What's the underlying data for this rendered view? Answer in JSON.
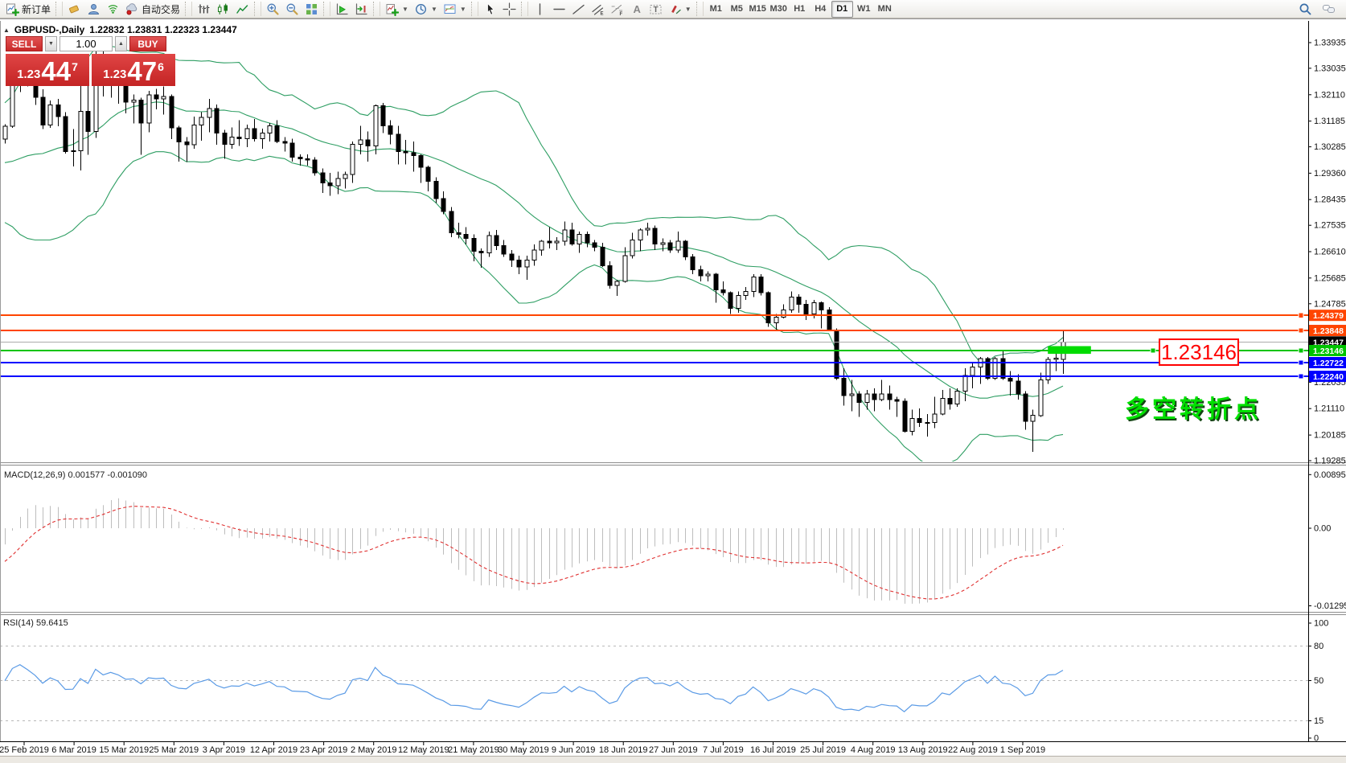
{
  "toolbar": {
    "items": [
      {
        "icon": "new-order",
        "label": "新订单",
        "name": "new-order-button"
      },
      {
        "sep": true
      },
      {
        "icon": "eraser",
        "name": "eraser-button"
      },
      {
        "icon": "profile",
        "name": "profile-button"
      },
      {
        "icon": "signal",
        "name": "signals-button"
      },
      {
        "icon": "auto-trading",
        "label": "自动交易",
        "name": "auto-trading-button"
      },
      {
        "sep": true
      },
      {
        "icon": "bar-chart",
        "name": "bar-chart-button"
      },
      {
        "icon": "candle-chart",
        "name": "candle-chart-button"
      },
      {
        "icon": "line-chart",
        "name": "line-chart-button"
      },
      {
        "sep": true
      },
      {
        "icon": "zoom-in",
        "name": "zoom-in-button"
      },
      {
        "icon": "zoom-out",
        "name": "zoom-out-button"
      },
      {
        "icon": "tile-windows",
        "name": "tile-windows-button"
      },
      {
        "sep": true
      },
      {
        "icon": "auto-scroll",
        "name": "auto-scroll-button"
      },
      {
        "icon": "chart-shift",
        "name": "chart-shift-button"
      },
      {
        "sep": true
      },
      {
        "icon": "indicators-add",
        "caret": true,
        "name": "indicators-button"
      },
      {
        "icon": "periods-clock",
        "caret": true,
        "name": "periods-button"
      },
      {
        "icon": "templates",
        "caret": true,
        "name": "templates-button"
      },
      {
        "sep": true
      },
      {
        "icon": "cursor",
        "name": "cursor-button"
      },
      {
        "icon": "crosshair",
        "name": "crosshair-button"
      },
      {
        "sep": true
      },
      {
        "icon": "vertical-line",
        "name": "vertical-line-button"
      },
      {
        "icon": "horizontal-line",
        "name": "horizontal-line-button"
      },
      {
        "icon": "trend-line",
        "name": "trend-line-button"
      },
      {
        "icon": "equidistant-channel",
        "name": "equidistant-channel-button"
      },
      {
        "icon": "fibonacci",
        "name": "fibonacci-button"
      },
      {
        "icon": "text",
        "name": "text-button"
      },
      {
        "icon": "text-label",
        "name": "text-label-button"
      },
      {
        "icon": "arrows",
        "caret": true,
        "name": "arrows-button"
      },
      {
        "sep": true
      }
    ],
    "timeframes": [
      "M1",
      "M5",
      "M15",
      "M30",
      "H1",
      "H4",
      "D1",
      "W1",
      "MN"
    ],
    "active_timeframe": "D1"
  },
  "header": {
    "collapse_glyph": "▲",
    "symbol_title": "GBPUSD-,Daily",
    "ohlc": "1.22832 1.23831 1.22323 1.23447"
  },
  "trade_panel": {
    "sell_label": "SELL",
    "buy_label": "BUY",
    "volume": "1.00",
    "down_glyph": "▼",
    "up_glyph": "▲",
    "sell_small": "1.23",
    "sell_big": "44",
    "sell_sup": "7",
    "buy_small": "1.23",
    "buy_big": "47",
    "buy_sup": "6"
  },
  "indicators": {
    "macd_label": "MACD(12,26,9) 0.001577 -0.001090",
    "rsi_label": "RSI(14) 59.6415"
  },
  "annotations": {
    "price_callout": "1.23146",
    "turning_point": "多空转折点"
  },
  "chart_data": {
    "type": "candlestick",
    "symbol": "GBPUSD",
    "timeframe": "Daily",
    "price_ticks": [
      "1.33935",
      "1.33035",
      "1.32110",
      "1.31185",
      "1.30285",
      "1.29360",
      "1.28435",
      "1.27535",
      "1.26610",
      "1.25685",
      "1.24785",
      "1.22035",
      "1.21110",
      "1.20185",
      "1.19285"
    ],
    "axis_labels": [
      {
        "text": "1.24379",
        "bg": "#FF4500"
      },
      {
        "text": "1.23848",
        "bg": "#FF4500"
      },
      {
        "text": "1.23447",
        "bg": "#000000"
      },
      {
        "text": "1.23146",
        "bg": "#00C400"
      },
      {
        "text": "1.22722",
        "bg": "#0000FF"
      },
      {
        "text": "1.22240",
        "bg": "#0000FF"
      }
    ],
    "hlines": [
      {
        "price": 1.24379,
        "color": "#FF4500",
        "width": 2,
        "handle": true
      },
      {
        "price": 1.23848,
        "color": "#FF4500",
        "width": 2,
        "handle": true
      },
      {
        "price": 1.23146,
        "color": "#00C400",
        "width": 2,
        "handle": true
      },
      {
        "price": 1.22722,
        "color": "#0000FF",
        "width": 2,
        "handle": true
      },
      {
        "price": 1.2224,
        "color": "#0000FF",
        "width": 2,
        "handle": true
      },
      {
        "price": 1.23447,
        "color": "#ABABAB",
        "width": 1,
        "price_line": true
      }
    ],
    "highlight_zone": {
      "bar_start": 138,
      "bar_end": 143.7,
      "price_top": 1.233,
      "price_bottom": 1.2303,
      "color": "#00DC00"
    },
    "callout": {
      "text": "1.23146",
      "color": "#FF0000"
    },
    "turning_point_text": {
      "text": "多空转折点",
      "color": "#00E000"
    },
    "time_labels": [
      "25 Feb 2019",
      "6 Mar 2019",
      "15 Mar 2019",
      "25 Mar 2019",
      "3 Apr 2019",
      "12 Apr 2019",
      "23 Apr 2019",
      "2 May 2019",
      "12 May 2019",
      "21 May 2019",
      "30 May 2019",
      "9 Jun 2019",
      "18 Jun 2019",
      "27 Jun 2019",
      "7 Jul 2019",
      "16 Jul 2019",
      "25 Jul 2019",
      "4 Aug 2019",
      "13 Aug 2019",
      "22 Aug 2019",
      "1 Sep 2019"
    ],
    "bollinger": {
      "period": 20,
      "deviation": 2,
      "color": "#2E9E63"
    },
    "macd": {
      "fast": 12,
      "slow": 26,
      "signal": 9,
      "ticks": [
        {
          "text": "0.008954",
          "value": 0.008954
        },
        {
          "text": "0.00",
          "value": 0
        },
        {
          "text": "-0.012957",
          "value": -0.012957
        }
      ],
      "histogram_color": "#BDBDBD",
      "signal_color": "#E03030"
    },
    "rsi": {
      "period": 14,
      "value": 59.6415,
      "color": "#5B9BE6",
      "dashed_levels": [
        80,
        50,
        15
      ],
      "ticks": [
        {
          "text": "100",
          "value": 100
        },
        {
          "text": "80",
          "value": 80
        },
        {
          "text": "50",
          "value": 50
        },
        {
          "text": "15",
          "value": 15
        },
        {
          "text": "0",
          "value": 0
        }
      ]
    },
    "warmup_closes": [
      1.318,
      1.3155,
      1.311,
      1.3072,
      1.3095,
      1.306,
      1.299,
      1.2945,
      1.29,
      1.2865,
      1.284,
      1.2872,
      1.2905,
      1.2852,
      1.28,
      1.2875,
      1.293,
      1.299,
      1.3042,
      1.306
    ],
    "candles": [
      [
        1.3055,
        1.3108,
        1.304,
        1.31
      ],
      [
        1.31,
        1.3288,
        1.3095,
        1.325
      ],
      [
        1.325,
        1.335,
        1.322,
        1.331
      ],
      [
        1.331,
        1.3327,
        1.324,
        1.3262
      ],
      [
        1.3262,
        1.329,
        1.3175,
        1.3202
      ],
      [
        1.3202,
        1.323,
        1.309,
        1.3105
      ],
      [
        1.3105,
        1.319,
        1.3095,
        1.3175
      ],
      [
        1.3175,
        1.3196,
        1.31,
        1.3135
      ],
      [
        1.3135,
        1.315,
        1.3005,
        1.3012
      ],
      [
        1.3012,
        1.309,
        1.296,
        1.3015
      ],
      [
        1.3015,
        1.329,
        1.2945,
        1.3152
      ],
      [
        1.3152,
        1.327,
        1.3,
        1.3082
      ],
      [
        1.3082,
        1.338,
        1.306,
        1.333
      ],
      [
        1.333,
        1.337,
        1.3205,
        1.3242
      ],
      [
        1.3242,
        1.3345,
        1.32,
        1.3292
      ],
      [
        1.3292,
        1.3312,
        1.318,
        1.3255
      ],
      [
        1.3255,
        1.3272,
        1.3145,
        1.3185
      ],
      [
        1.3185,
        1.3212,
        1.311,
        1.3192
      ],
      [
        1.3192,
        1.32,
        1.3,
        1.3112
      ],
      [
        1.3112,
        1.3225,
        1.308,
        1.321
      ],
      [
        1.321,
        1.3232,
        1.316,
        1.3196
      ],
      [
        1.3196,
        1.324,
        1.3142,
        1.3205
      ],
      [
        1.3205,
        1.3212,
        1.3055,
        1.3095
      ],
      [
        1.3095,
        1.3102,
        1.2977,
        1.3045
      ],
      [
        1.3045,
        1.3062,
        1.2975,
        1.3035
      ],
      [
        1.3035,
        1.3135,
        1.3022,
        1.3105
      ],
      [
        1.3105,
        1.315,
        1.305,
        1.3132
      ],
      [
        1.3132,
        1.3196,
        1.308,
        1.3162
      ],
      [
        1.3162,
        1.3176,
        1.3035,
        1.3077
      ],
      [
        1.3077,
        1.3088,
        1.2987,
        1.3037
      ],
      [
        1.3037,
        1.3096,
        1.3022,
        1.3062
      ],
      [
        1.3062,
        1.3121,
        1.3032,
        1.3057
      ],
      [
        1.3057,
        1.3106,
        1.3027,
        1.3092
      ],
      [
        1.3092,
        1.3126,
        1.3047,
        1.3057
      ],
      [
        1.3057,
        1.3092,
        1.3022,
        1.3077
      ],
      [
        1.3077,
        1.3112,
        1.3047,
        1.3102
      ],
      [
        1.3102,
        1.3122,
        1.3042,
        1.3047
      ],
      [
        1.3047,
        1.3062,
        1.3012,
        1.3042
      ],
      [
        1.3042,
        1.3057,
        1.2977,
        1.2992
      ],
      [
        1.2992,
        1.3002,
        1.2962,
        1.2987
      ],
      [
        1.2987,
        1.3002,
        1.2962,
        1.2982
      ],
      [
        1.2982,
        1.2992,
        1.2927,
        1.2937
      ],
      [
        1.2937,
        1.2952,
        1.2867,
        1.2902
      ],
      [
        1.2902,
        1.2937,
        1.2857,
        1.2892
      ],
      [
        1.2892,
        1.2942,
        1.2862,
        1.2917
      ],
      [
        1.2917,
        1.2942,
        1.2882,
        1.2932
      ],
      [
        1.2932,
        1.3047,
        1.2902,
        1.3037
      ],
      [
        1.3037,
        1.3102,
        1.3002,
        1.3052
      ],
      [
        1.3052,
        1.3082,
        1.2977,
        1.3032
      ],
      [
        1.3032,
        1.3177,
        1.3002,
        1.3172
      ],
      [
        1.3172,
        1.3182,
        1.3077,
        1.3102
      ],
      [
        1.3102,
        1.3122,
        1.3037,
        1.3072
      ],
      [
        1.3072,
        1.3102,
        1.2967,
        1.3012
      ],
      [
        1.3012,
        1.3052,
        1.2967,
        1.3007
      ],
      [
        1.3007,
        1.3047,
        1.2942,
        1.2997
      ],
      [
        1.2997,
        1.3002,
        1.2902,
        1.2957
      ],
      [
        1.2957,
        1.2962,
        1.2872,
        1.2907
      ],
      [
        1.2907,
        1.2922,
        1.2832,
        1.2847
      ],
      [
        1.2847,
        1.2872,
        1.2792,
        1.2802
      ],
      [
        1.2802,
        1.2817,
        1.2712,
        1.2727
      ],
      [
        1.2727,
        1.2762,
        1.2707,
        1.2722
      ],
      [
        1.2722,
        1.2747,
        1.2687,
        1.2707
      ],
      [
        1.2707,
        1.2722,
        1.2627,
        1.2662
      ],
      [
        1.2662,
        1.2672,
        1.2605,
        1.2657
      ],
      [
        1.2657,
        1.2732,
        1.2642,
        1.2717
      ],
      [
        1.2717,
        1.2737,
        1.2667,
        1.2682
      ],
      [
        1.2682,
        1.2702,
        1.2642,
        1.2652
      ],
      [
        1.2652,
        1.2667,
        1.2607,
        1.2632
      ],
      [
        1.2632,
        1.2647,
        1.2582,
        1.2607
      ],
      [
        1.2607,
        1.2647,
        1.2562,
        1.2632
      ],
      [
        1.2632,
        1.2687,
        1.2612,
        1.2667
      ],
      [
        1.2667,
        1.2702,
        1.2647,
        1.2697
      ],
      [
        1.2697,
        1.2747,
        1.2672,
        1.2692
      ],
      [
        1.2692,
        1.2712,
        1.2667,
        1.2697
      ],
      [
        1.2697,
        1.2767,
        1.2682,
        1.2737
      ],
      [
        1.2737,
        1.2762,
        1.2682,
        1.2687
      ],
      [
        1.2687,
        1.2732,
        1.2657,
        1.2722
      ],
      [
        1.2722,
        1.2732,
        1.2677,
        1.2692
      ],
      [
        1.2692,
        1.2702,
        1.2662,
        1.2677
      ],
      [
        1.2677,
        1.2692,
        1.2607,
        1.2612
      ],
      [
        1.2612,
        1.2627,
        1.2532,
        1.2542
      ],
      [
        1.2542,
        1.2562,
        1.2506,
        1.2557
      ],
      [
        1.2557,
        1.2677,
        1.2552,
        1.2647
      ],
      [
        1.2647,
        1.2727,
        1.2637,
        1.2702
      ],
      [
        1.2702,
        1.2742,
        1.2662,
        1.2737
      ],
      [
        1.2737,
        1.2762,
        1.2717,
        1.2742
      ],
      [
        1.2742,
        1.2752,
        1.2667,
        1.2687
      ],
      [
        1.2687,
        1.2707,
        1.2662,
        1.2692
      ],
      [
        1.2692,
        1.2702,
        1.2657,
        1.2667
      ],
      [
        1.2667,
        1.2732,
        1.2657,
        1.2697
      ],
      [
        1.2697,
        1.2702,
        1.2632,
        1.2642
      ],
      [
        1.2642,
        1.2652,
        1.2582,
        1.2597
      ],
      [
        1.2597,
        1.2612,
        1.2557,
        1.2577
      ],
      [
        1.2577,
        1.2592,
        1.2557,
        1.2582
      ],
      [
        1.2582,
        1.2587,
        1.2482,
        1.2527
      ],
      [
        1.2527,
        1.2557,
        1.2507,
        1.2517
      ],
      [
        1.2517,
        1.2522,
        1.2442,
        1.2462
      ],
      [
        1.2462,
        1.2522,
        1.2447,
        1.2507
      ],
      [
        1.2507,
        1.2537,
        1.2492,
        1.2522
      ],
      [
        1.2522,
        1.2582,
        1.2502,
        1.2572
      ],
      [
        1.2572,
        1.2582,
        1.2507,
        1.2517
      ],
      [
        1.2517,
        1.2522,
        1.2397,
        1.2412
      ],
      [
        1.2412,
        1.2442,
        1.2382,
        1.2432
      ],
      [
        1.2432,
        1.2477,
        1.2427,
        1.2457
      ],
      [
        1.2457,
        1.2522,
        1.2447,
        1.2502
      ],
      [
        1.2502,
        1.2512,
        1.2447,
        1.2477
      ],
      [
        1.2477,
        1.2492,
        1.2422,
        1.2442
      ],
      [
        1.2442,
        1.2492,
        1.2427,
        1.2482
      ],
      [
        1.2482,
        1.2487,
        1.2392,
        1.2457
      ],
      [
        1.2457,
        1.2467,
        1.2382,
        1.2387
      ],
      [
        1.2387,
        1.2392,
        1.2212,
        1.2217
      ],
      [
        1.2217,
        1.2252,
        1.2122,
        1.2157
      ],
      [
        1.2157,
        1.2212,
        1.2102,
        1.2162
      ],
      [
        1.2162,
        1.2172,
        1.2082,
        1.2132
      ],
      [
        1.2132,
        1.2177,
        1.2107,
        1.2162
      ],
      [
        1.2162,
        1.2182,
        1.2102,
        1.2142
      ],
      [
        1.2142,
        1.2212,
        1.2137,
        1.2162
      ],
      [
        1.2162,
        1.2192,
        1.2107,
        1.2142
      ],
      [
        1.2142,
        1.2152,
        1.2082,
        1.2137
      ],
      [
        1.2137,
        1.2147,
        1.2027,
        1.2032
      ],
      [
        1.2032,
        1.2107,
        1.2017,
        1.2077
      ],
      [
        1.2077,
        1.2112,
        1.2047,
        1.2062
      ],
      [
        1.2062,
        1.2092,
        1.2013,
        1.2062
      ],
      [
        1.2062,
        1.2152,
        1.2042,
        1.2092
      ],
      [
        1.2092,
        1.2177,
        1.2087,
        1.2147
      ],
      [
        1.2147,
        1.2182,
        1.2107,
        1.2127
      ],
      [
        1.2127,
        1.2182,
        1.2117,
        1.2172
      ],
      [
        1.2172,
        1.2252,
        1.2137,
        1.2227
      ],
      [
        1.2227,
        1.2272,
        1.2182,
        1.2257
      ],
      [
        1.2257,
        1.2292,
        1.2197,
        1.2287
      ],
      [
        1.2287,
        1.2292,
        1.2212,
        1.2217
      ],
      [
        1.2217,
        1.2292,
        1.2212,
        1.2287
      ],
      [
        1.2287,
        1.2312,
        1.2212,
        1.2217
      ],
      [
        1.2217,
        1.2242,
        1.2157,
        1.2207
      ],
      [
        1.2207,
        1.2232,
        1.2142,
        1.2162
      ],
      [
        1.2162,
        1.2172,
        1.2037,
        1.2067
      ],
      [
        1.2067,
        1.2107,
        1.1959,
        1.2087
      ],
      [
        1.2087,
        1.2237,
        1.2082,
        1.2212
      ],
      [
        1.2212,
        1.2292,
        1.2197,
        1.2283
      ],
      [
        1.2283,
        1.2322,
        1.2242,
        1.2288
      ],
      [
        1.22832,
        1.23831,
        1.22323,
        1.23447
      ]
    ]
  }
}
